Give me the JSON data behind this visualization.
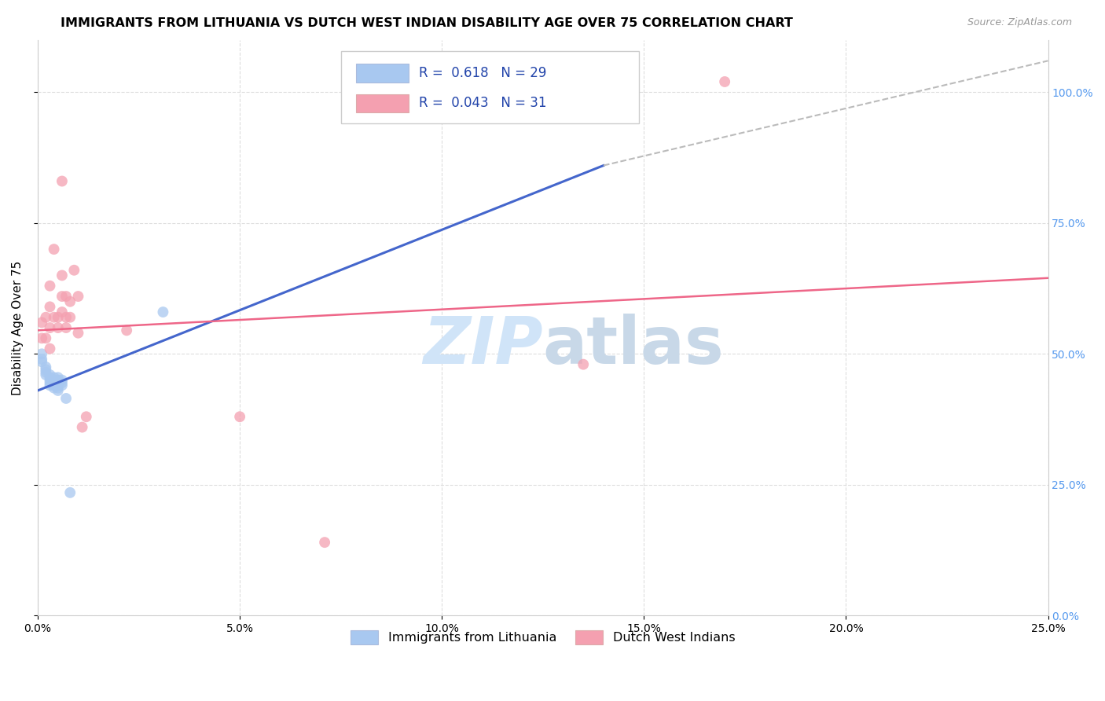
{
  "title": "IMMIGRANTS FROM LITHUANIA VS DUTCH WEST INDIAN DISABILITY AGE OVER 75 CORRELATION CHART",
  "source": "Source: ZipAtlas.com",
  "ylabel": "Disability Age Over 75",
  "xlim": [
    0.0,
    0.25
  ],
  "ylim": [
    0.0,
    1.1
  ],
  "legend1_R": "0.618",
  "legend1_N": "29",
  "legend2_R": "0.043",
  "legend2_N": "31",
  "blue_color": "#A8C8F0",
  "pink_color": "#F4A0B0",
  "blue_line_color": "#4466CC",
  "pink_line_color": "#EE6688",
  "dashed_line_color": "#BBBBBB",
  "watermark_color": "#D0E4F8",
  "blue_scatter_x": [
    0.001,
    0.001,
    0.001,
    0.002,
    0.002,
    0.002,
    0.002,
    0.003,
    0.003,
    0.003,
    0.003,
    0.003,
    0.004,
    0.004,
    0.004,
    0.004,
    0.004,
    0.005,
    0.005,
    0.005,
    0.005,
    0.005,
    0.005,
    0.006,
    0.006,
    0.006,
    0.007,
    0.008,
    0.031
  ],
  "blue_scatter_y": [
    0.485,
    0.49,
    0.5,
    0.46,
    0.465,
    0.47,
    0.475,
    0.44,
    0.445,
    0.45,
    0.455,
    0.46,
    0.435,
    0.44,
    0.445,
    0.45,
    0.455,
    0.43,
    0.435,
    0.44,
    0.445,
    0.45,
    0.455,
    0.44,
    0.445,
    0.45,
    0.415,
    0.235,
    0.58
  ],
  "pink_scatter_x": [
    0.001,
    0.001,
    0.002,
    0.002,
    0.003,
    0.003,
    0.003,
    0.003,
    0.004,
    0.004,
    0.005,
    0.005,
    0.006,
    0.006,
    0.006,
    0.006,
    0.007,
    0.007,
    0.007,
    0.008,
    0.008,
    0.009,
    0.01,
    0.01,
    0.011,
    0.012,
    0.022,
    0.05,
    0.071,
    0.135,
    0.17
  ],
  "pink_scatter_y": [
    0.53,
    0.56,
    0.53,
    0.57,
    0.51,
    0.55,
    0.59,
    0.63,
    0.57,
    0.7,
    0.55,
    0.57,
    0.58,
    0.61,
    0.65,
    0.83,
    0.55,
    0.57,
    0.61,
    0.57,
    0.6,
    0.66,
    0.54,
    0.61,
    0.36,
    0.38,
    0.545,
    0.38,
    0.14,
    0.48,
    1.02
  ],
  "blue_line_x": [
    0.0,
    0.14
  ],
  "blue_line_y": [
    0.43,
    0.86
  ],
  "pink_line_x": [
    0.0,
    0.25
  ],
  "pink_line_y": [
    0.545,
    0.645
  ],
  "dashed_line_x": [
    0.14,
    0.25
  ],
  "dashed_line_y": [
    0.86,
    1.06
  ],
  "x_ticks": [
    0.0,
    0.05,
    0.1,
    0.15,
    0.2,
    0.25
  ],
  "x_tick_labels": [
    "0.0%",
    "5.0%",
    "10.0%",
    "15.0%",
    "20.0%",
    "25.0%"
  ],
  "y_ticks": [
    0.0,
    0.25,
    0.5,
    0.75,
    1.0
  ],
  "y_tick_labels": [
    "0.0%",
    "25.0%",
    "50.0%",
    "75.0%",
    "100.0%"
  ],
  "grid_color": "#DDDDDD",
  "title_fontsize": 11.5,
  "tick_fontsize": 10,
  "right_tick_color": "#5599EE",
  "marker_size": 100
}
